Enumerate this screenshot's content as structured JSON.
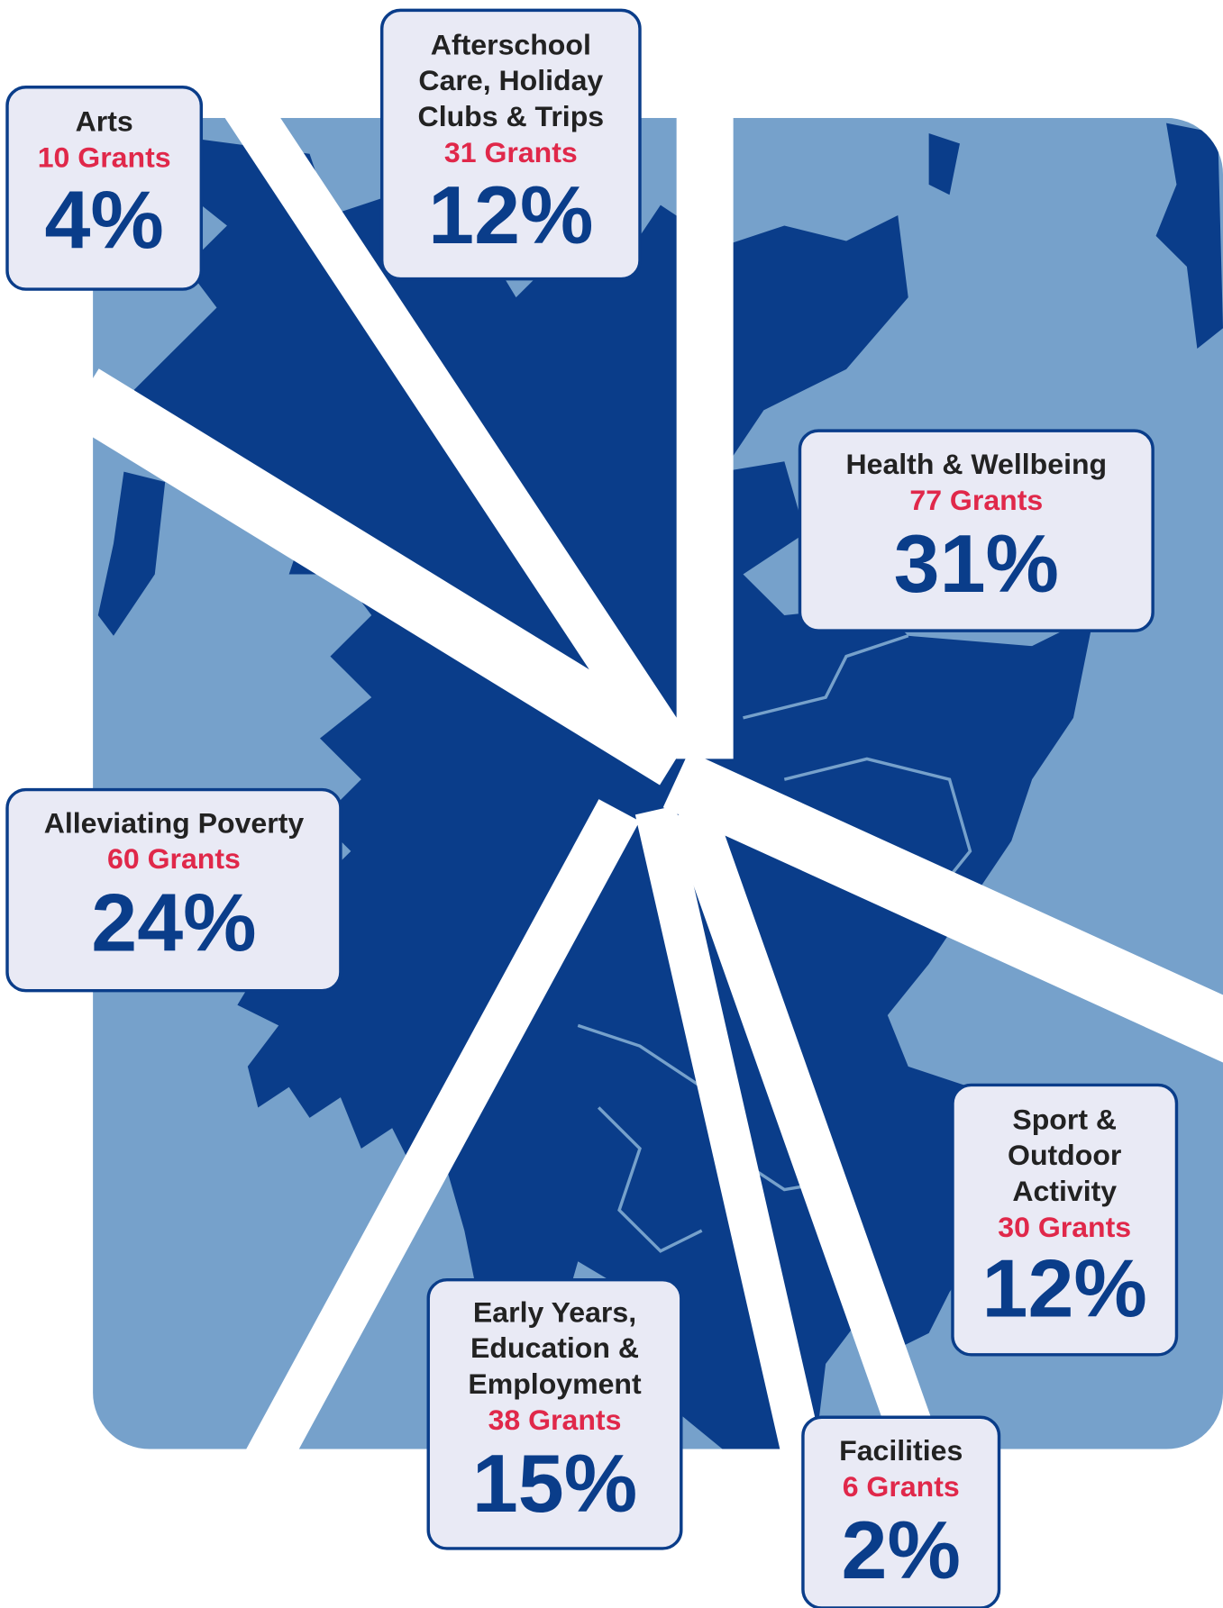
{
  "items": [
    {
      "lines": [
        "Arts"
      ],
      "grants": "10 Grants",
      "percent": "4%"
    },
    {
      "lines": [
        "Afterschool",
        "Care, Holiday",
        "Clubs & Trips"
      ],
      "grants": "31 Grants",
      "percent": "12%"
    },
    {
      "lines": [
        "Health & Wellbeing"
      ],
      "grants": "77 Grants",
      "percent": "31%"
    },
    {
      "lines": [
        "Alleviating Poverty"
      ],
      "grants": "60 Grants",
      "percent": "24%"
    },
    {
      "lines": [
        "Sport &",
        "Outdoor",
        "Activity"
      ],
      "grants": "30 Grants",
      "percent": "12%"
    },
    {
      "lines": [
        "Early Years,",
        "Education &",
        "Employment"
      ],
      "grants": "38 Grants",
      "percent": "15%"
    },
    {
      "lines": [
        "Facilities"
      ],
      "grants": "6 Grants",
      "percent": "2%"
    }
  ]
}
